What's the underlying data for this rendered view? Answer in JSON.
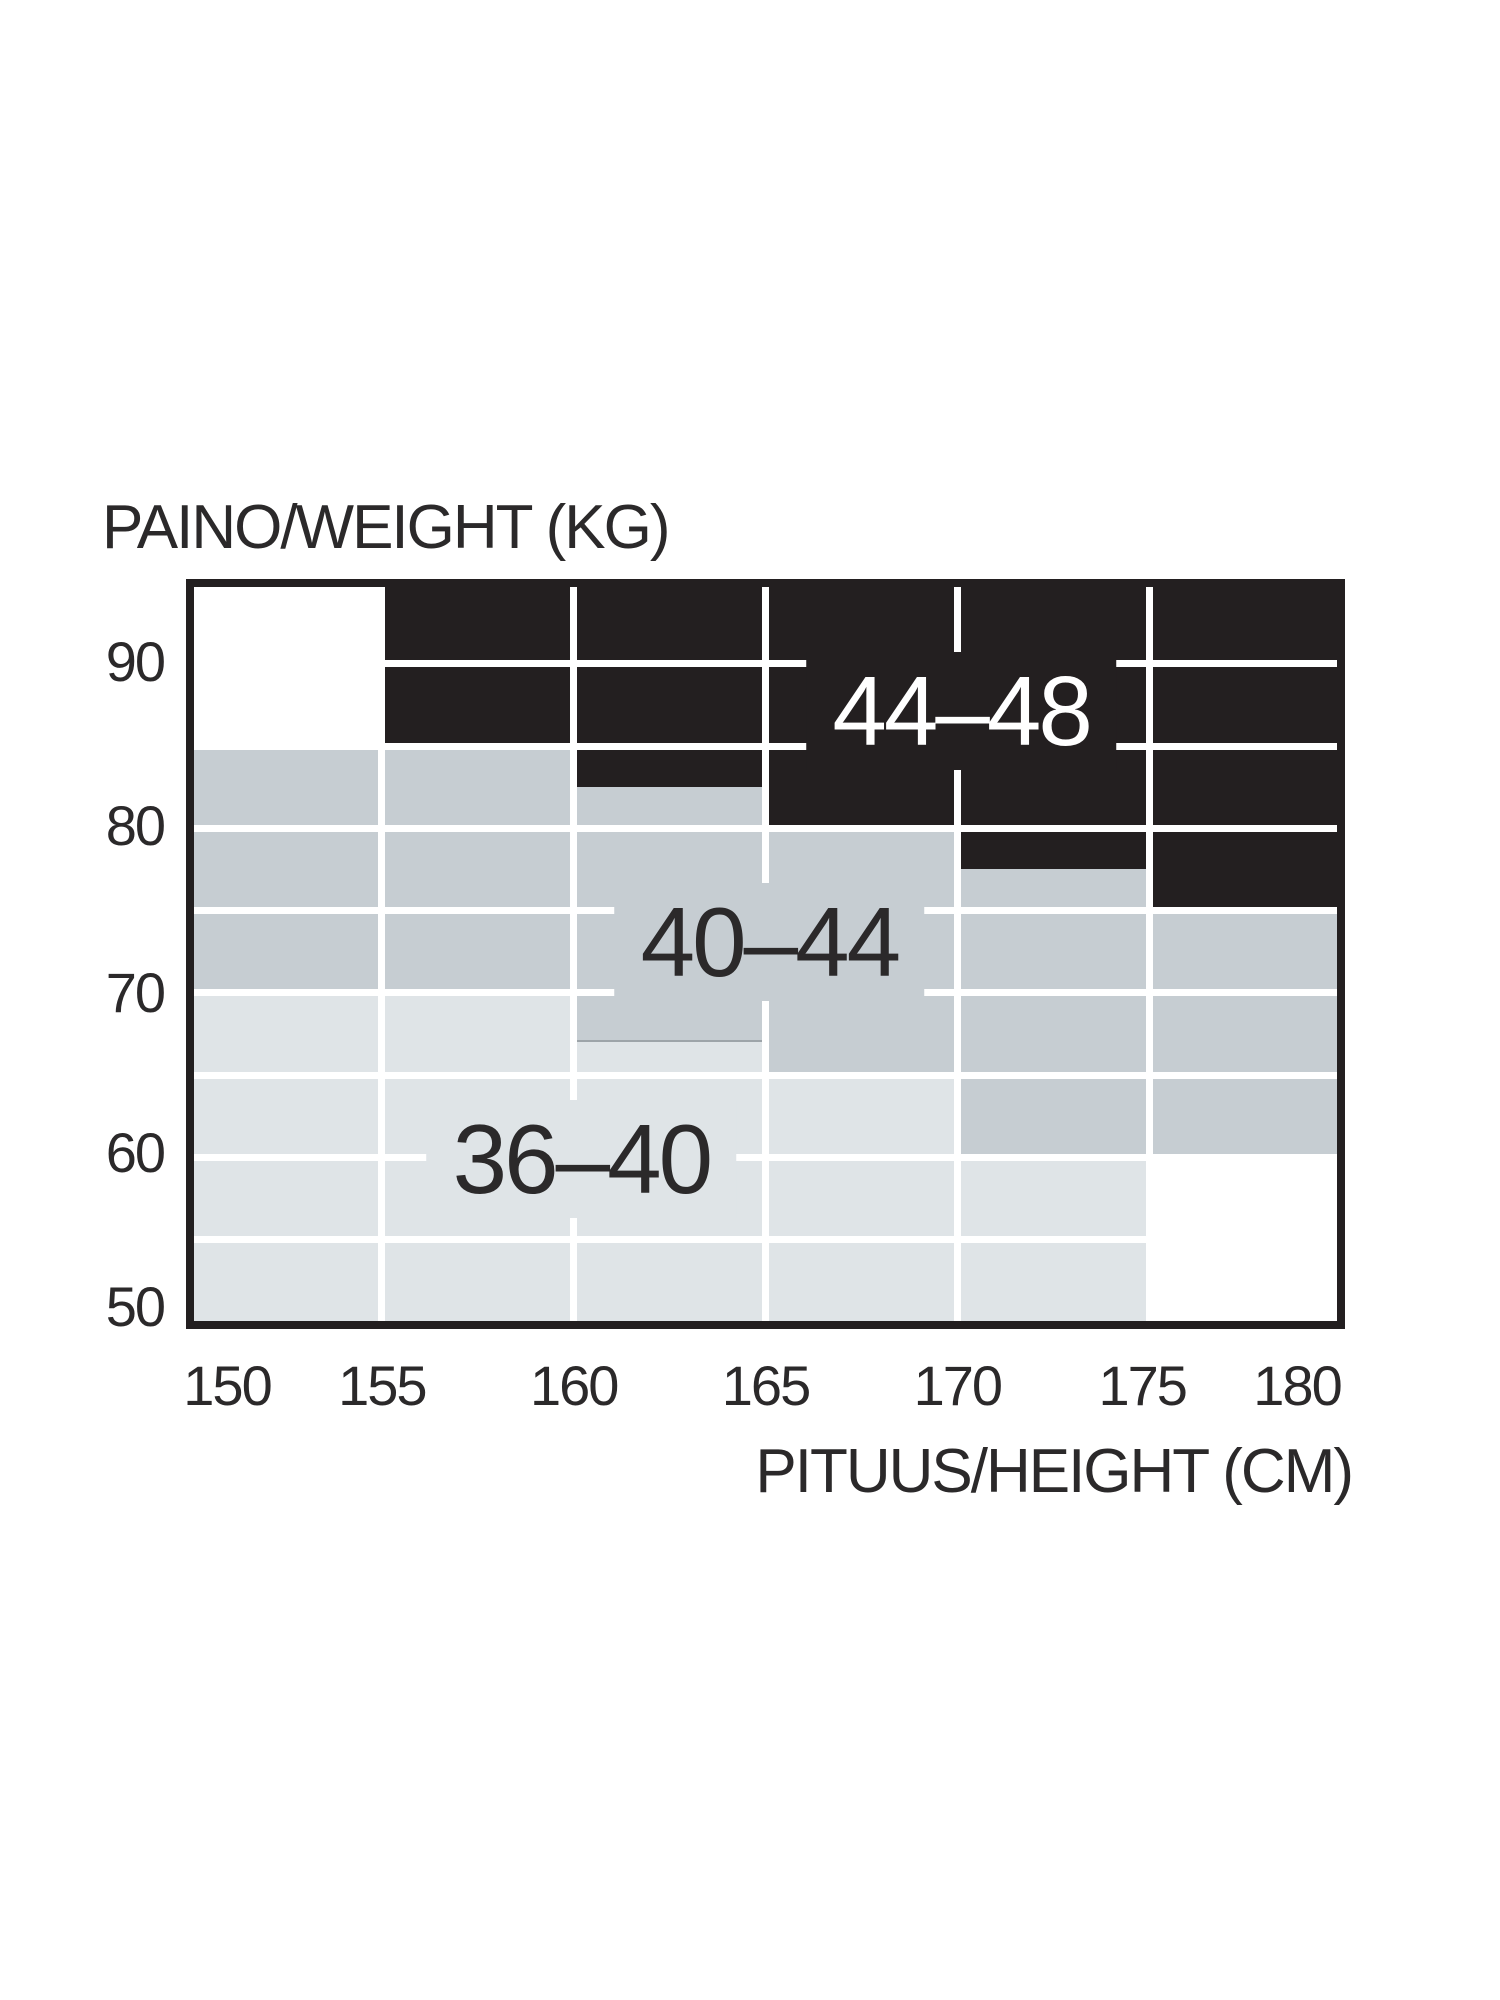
{
  "page": {
    "background": "#ffffff"
  },
  "chart_data": {
    "type": "area",
    "title": "PAINO/WEIGHT (KG)",
    "xlabel": "PITUUS/HEIGHT (CM)",
    "ylabel": "PAINO/WEIGHT (KG)",
    "xlim": [
      150,
      180
    ],
    "ylim": [
      50,
      95
    ],
    "x_ticks": [
      {
        "value": 150,
        "dx": 37
      },
      {
        "value": 155,
        "dx": 0
      },
      {
        "value": 160,
        "dx": 0
      },
      {
        "value": 165,
        "dx": 0
      },
      {
        "value": 170,
        "dx": 0
      },
      {
        "value": 175,
        "dx": -7
      },
      {
        "value": 180,
        "dx": -44
      }
    ],
    "y_ticks": [
      {
        "value": 90,
        "dy": -2
      },
      {
        "value": 80,
        "dy": -2
      },
      {
        "value": 70,
        "dy": 0
      },
      {
        "value": 60,
        "dy": -4
      },
      {
        "value": 50,
        "dy": -15
      }
    ],
    "grid_x_cm": [
      155,
      160,
      165,
      170,
      175
    ],
    "grid_y_kg": [
      90,
      85,
      80,
      75,
      70,
      65,
      60,
      55
    ],
    "grid_on": true,
    "legend": "none",
    "colors": {
      "frame": "#231f20",
      "grid": "#ffffff",
      "zone_dark": "#231f20",
      "zone_medium": "#c6cdd2",
      "zone_light": "#dfe4e7",
      "text": "#2b292a",
      "text_on_dark": "#ffffff"
    },
    "zones": [
      {
        "label": "36–40",
        "color_key": "zone_light",
        "text_color": "#2b292a",
        "label_center": {
          "cm": 160.2,
          "kg": 59.9
        },
        "cells": [
          {
            "cm": [
              150,
              155
            ],
            "kg": [
              50,
              70
            ]
          },
          {
            "cm": [
              155,
              160
            ],
            "kg": [
              50,
              70
            ]
          },
          {
            "cm": [
              160,
              165
            ],
            "kg": [
              50,
              67
            ]
          },
          {
            "cm": [
              165,
              170
            ],
            "kg": [
              50,
              65
            ]
          },
          {
            "cm": [
              170,
              175
            ],
            "kg": [
              50,
              60
            ]
          }
        ]
      },
      {
        "label": "40–44",
        "color_key": "zone_medium",
        "text_color": "#2b292a",
        "label_center": {
          "cm": 165.1,
          "kg": 73.1
        },
        "cells": [
          {
            "cm": [
              150,
              155
            ],
            "kg": [
              70,
              85
            ]
          },
          {
            "cm": [
              155,
              160
            ],
            "kg": [
              70,
              85
            ]
          },
          {
            "cm": [
              160,
              165
            ],
            "kg": [
              67,
              82.5
            ],
            "edge_bottom": true
          },
          {
            "cm": [
              165,
              170
            ],
            "kg": [
              65,
              80
            ]
          },
          {
            "cm": [
              170,
              175
            ],
            "kg": [
              60,
              77.5
            ]
          },
          {
            "cm": [
              175,
              180
            ],
            "kg": [
              60,
              75
            ]
          }
        ]
      },
      {
        "label": "44–48",
        "color_key": "zone_dark",
        "text_color": "#ffffff",
        "label_center": {
          "cm": 170.1,
          "kg": 87.1
        },
        "cells": [
          {
            "cm": [
              155,
              160
            ],
            "kg": [
              85,
              95
            ]
          },
          {
            "cm": [
              160,
              165
            ],
            "kg": [
              82.5,
              95
            ]
          },
          {
            "cm": [
              165,
              170
            ],
            "kg": [
              80,
              95
            ]
          },
          {
            "cm": [
              170,
              175
            ],
            "kg": [
              77.5,
              95
            ]
          },
          {
            "cm": [
              175,
              180
            ],
            "kg": [
              75,
              95
            ]
          }
        ]
      }
    ]
  }
}
